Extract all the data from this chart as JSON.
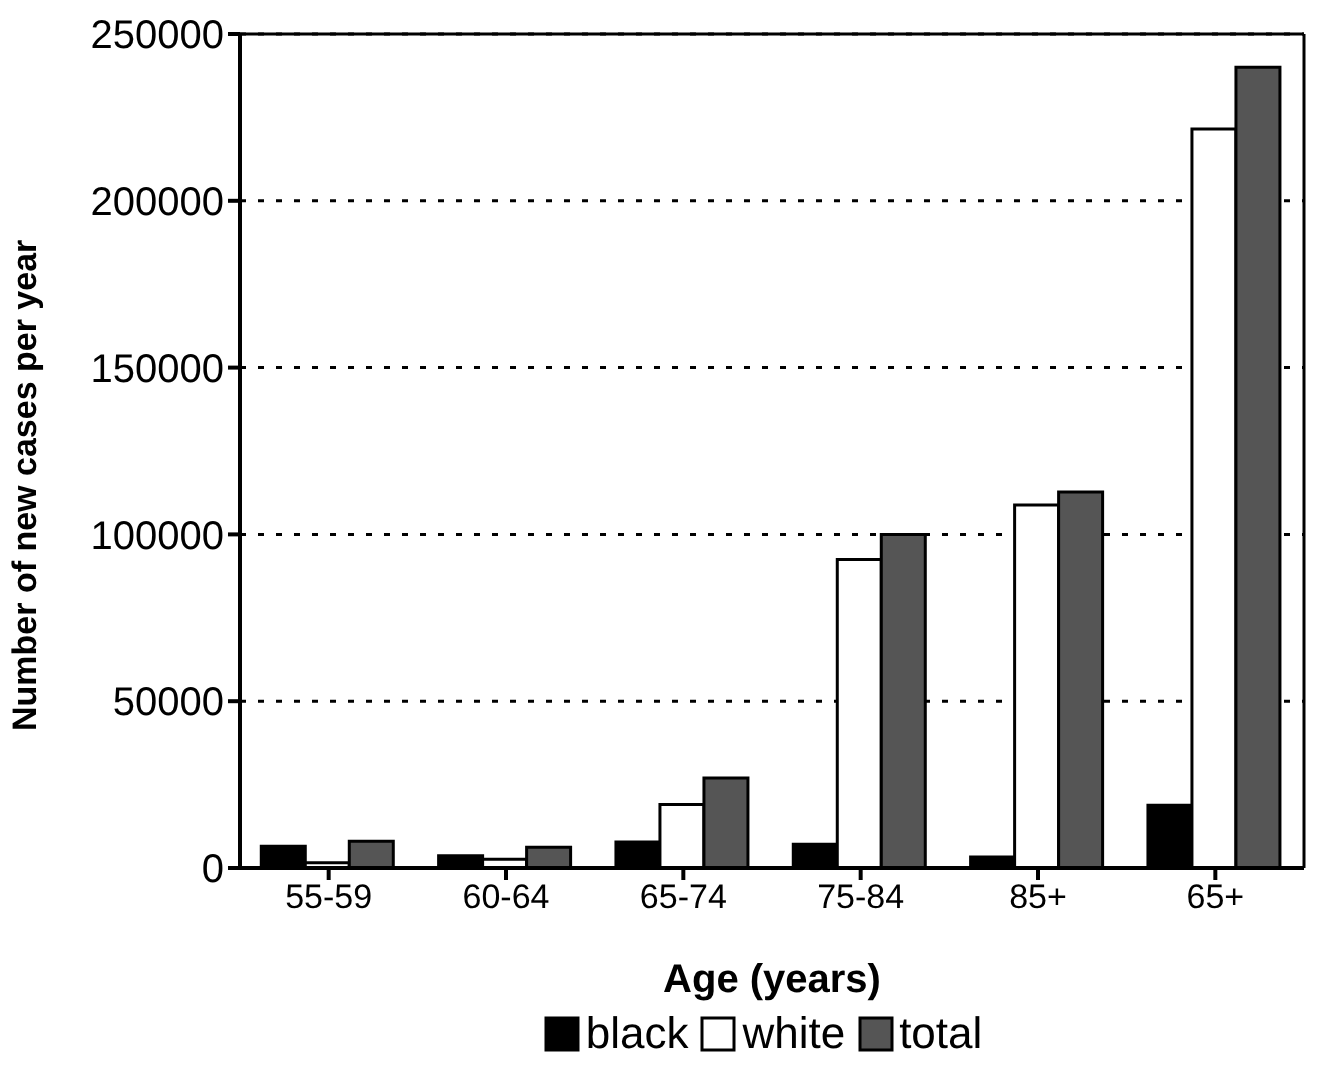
{
  "chart_data": {
    "type": "bar",
    "xlabel": "Age (years)",
    "ylabel": "Number of new cases per year",
    "categories": [
      "55-59",
      "60-64",
      "65-74",
      "75-84",
      "85+",
      "65+"
    ],
    "series": [
      {
        "name": "black",
        "color": "#000000",
        "values": [
          6500,
          3700,
          7800,
          7100,
          3300,
          18800
        ]
      },
      {
        "name": "white",
        "color": "#ffffff",
        "values": [
          1600,
          2600,
          19000,
          92500,
          108800,
          221500
        ]
      },
      {
        "name": "total",
        "color": "#555555",
        "values": [
          8000,
          6200,
          27000,
          100000,
          112700,
          240000
        ]
      }
    ],
    "ylim": [
      0,
      250000
    ],
    "yticks": [
      0,
      50000,
      100000,
      150000,
      200000,
      250000
    ],
    "grid": "y",
    "legend": "bottom"
  }
}
